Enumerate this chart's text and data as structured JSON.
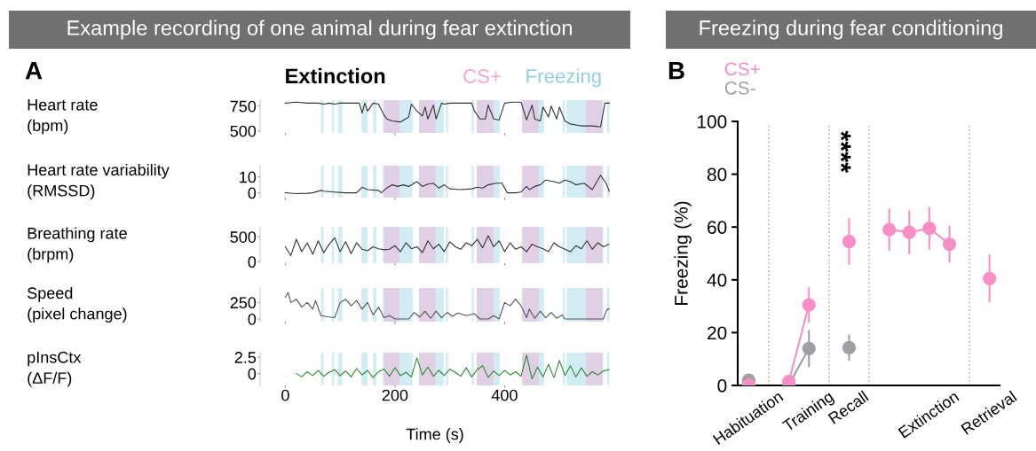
{
  "chart_data": [
    {
      "type": "line",
      "title": "Example recording of one animal during fear extinction",
      "subtitle": "Extinction",
      "annotations": [
        "A"
      ],
      "ylabel": "Heart rate\n(bpm)",
      "xlim": [
        -46,
        592
      ],
      "xticks": [
        0,
        200,
        400
      ],
      "ylim": [
        480,
        810
      ],
      "yticks": [
        500,
        750
      ],
      "tick_labels": "y",
      "legend": "top right",
      "series": [
        {
          "color": "#333333",
          "x": [
            0,
            20,
            40,
            60,
            70,
            80,
            90,
            100,
            120,
            135,
            140,
            145,
            150,
            160,
            170,
            180,
            185,
            195,
            210,
            225,
            230,
            240,
            250,
            255,
            260,
            270,
            275,
            285,
            290,
            300,
            320,
            340,
            345,
            355,
            365,
            370,
            380,
            390,
            400,
            415,
            430,
            435,
            440,
            450,
            455,
            465,
            470,
            480,
            485,
            495,
            500,
            510,
            520,
            530,
            540,
            560,
            575,
            583,
            591
          ],
          "values": [
            780,
            790,
            780,
            780,
            770,
            780,
            770,
            780,
            780,
            780,
            680,
            780,
            700,
            780,
            770,
            660,
            620,
            600,
            590,
            640,
            770,
            700,
            650,
            740,
            620,
            760,
            620,
            780,
            770,
            780,
            780,
            780,
            700,
            620,
            620,
            760,
            620,
            610,
            780,
            790,
            790,
            700,
            610,
            760,
            620,
            600,
            740,
            640,
            750,
            620,
            740,
            600,
            570,
            560,
            550,
            550,
            540,
            780,
            780
          ]
        }
      ],
      "bands": [
        {
          "axis": "x",
          "from": 65,
          "to": 70,
          "color": "#8ecfe0",
          "label": "Freezing"
        },
        {
          "axis": "x",
          "from": 85,
          "to": 89,
          "color": "#8ecfe0"
        },
        {
          "axis": "x",
          "from": 96,
          "to": 104,
          "color": "#8ecfe0"
        },
        {
          "axis": "x",
          "from": 139,
          "to": 150,
          "color": "#8ecfe0"
        },
        {
          "axis": "x",
          "from": 160,
          "to": 166,
          "color": "#8ecfe0"
        },
        {
          "axis": "x",
          "from": 178,
          "to": 232,
          "color": "#8ecfe0"
        },
        {
          "axis": "x",
          "from": 244,
          "to": 289,
          "color": "#8ecfe0"
        },
        {
          "axis": "x",
          "from": 293,
          "to": 297,
          "color": "#8ecfe0"
        },
        {
          "axis": "x",
          "from": 340,
          "to": 344,
          "color": "#8ecfe0"
        },
        {
          "axis": "x",
          "from": 349,
          "to": 391,
          "color": "#8ecfe0"
        },
        {
          "axis": "x",
          "from": 432,
          "to": 472,
          "color": "#8ecfe0"
        },
        {
          "axis": "x",
          "from": 506,
          "to": 510,
          "color": "#8ecfe0"
        },
        {
          "axis": "x",
          "from": 513,
          "to": 580,
          "color": "#8ecfe0"
        },
        {
          "axis": "x",
          "from": 587,
          "to": 591,
          "color": "#8ecfe0"
        },
        {
          "axis": "x",
          "from": 180,
          "to": 208,
          "color": "#f4a6d0",
          "label": "CS+"
        },
        {
          "axis": "x",
          "from": 244,
          "to": 274,
          "color": "#f4a6d0"
        },
        {
          "axis": "x",
          "from": 349,
          "to": 380,
          "color": "#f4a6d0"
        },
        {
          "axis": "x",
          "from": 432,
          "to": 462,
          "color": "#f4a6d0"
        },
        {
          "axis": "x",
          "from": 548,
          "to": 578,
          "color": "#f4a6d0"
        }
      ]
    },
    {
      "type": "line",
      "ylabel": "Heart rate variability\n(RMSSD)",
      "xlim": [
        -46,
        592
      ],
      "xticks": [
        0,
        200,
        400
      ],
      "ylim": [
        -3,
        17
      ],
      "yticks": [
        0,
        10
      ],
      "tick_labels": "y",
      "series": [
        {
          "color": "#333333",
          "x": [
            0,
            20,
            40,
            50,
            65,
            70,
            90,
            110,
            130,
            140,
            150,
            170,
            175,
            185,
            195,
            205,
            215,
            225,
            240,
            250,
            260,
            270,
            280,
            290,
            300,
            320,
            340,
            350,
            360,
            370,
            385,
            395,
            405,
            420,
            430,
            440,
            445,
            455,
            465,
            475,
            490,
            500,
            510,
            520,
            530,
            545,
            560,
            575,
            585,
            591
          ],
          "values": [
            0,
            -0.5,
            -0.3,
            0,
            1.5,
            1,
            0.5,
            0,
            0,
            3.5,
            2,
            1.5,
            0,
            3,
            5,
            4,
            5,
            4,
            7,
            4,
            5.5,
            6,
            3,
            5,
            2.5,
            2,
            2.5,
            3.5,
            3,
            5,
            6,
            6,
            0,
            0,
            0.5,
            4,
            2,
            4,
            5,
            8,
            7,
            6,
            8,
            7,
            5,
            6,
            2,
            11,
            6,
            1
          ]
        }
      ],
      "bands": [
        {
          "axis": "x",
          "from": 65,
          "to": 70,
          "color": "#8ecfe0"
        },
        {
          "axis": "x",
          "from": 85,
          "to": 89,
          "color": "#8ecfe0"
        },
        {
          "axis": "x",
          "from": 96,
          "to": 104,
          "color": "#8ecfe0"
        },
        {
          "axis": "x",
          "from": 139,
          "to": 150,
          "color": "#8ecfe0"
        },
        {
          "axis": "x",
          "from": 160,
          "to": 166,
          "color": "#8ecfe0"
        },
        {
          "axis": "x",
          "from": 178,
          "to": 232,
          "color": "#8ecfe0"
        },
        {
          "axis": "x",
          "from": 244,
          "to": 289,
          "color": "#8ecfe0"
        },
        {
          "axis": "x",
          "from": 293,
          "to": 297,
          "color": "#8ecfe0"
        },
        {
          "axis": "x",
          "from": 340,
          "to": 344,
          "color": "#8ecfe0"
        },
        {
          "axis": "x",
          "from": 349,
          "to": 391,
          "color": "#8ecfe0"
        },
        {
          "axis": "x",
          "from": 432,
          "to": 472,
          "color": "#8ecfe0"
        },
        {
          "axis": "x",
          "from": 506,
          "to": 510,
          "color": "#8ecfe0"
        },
        {
          "axis": "x",
          "from": 513,
          "to": 580,
          "color": "#8ecfe0"
        },
        {
          "axis": "x",
          "from": 587,
          "to": 591,
          "color": "#8ecfe0"
        },
        {
          "axis": "x",
          "from": 180,
          "to": 208,
          "color": "#f4a6d0"
        },
        {
          "axis": "x",
          "from": 244,
          "to": 274,
          "color": "#f4a6d0"
        },
        {
          "axis": "x",
          "from": 349,
          "to": 380,
          "color": "#f4a6d0"
        },
        {
          "axis": "x",
          "from": 432,
          "to": 462,
          "color": "#f4a6d0"
        },
        {
          "axis": "x",
          "from": 548,
          "to": 578,
          "color": "#f4a6d0"
        }
      ]
    },
    {
      "type": "line",
      "ylabel": "Breathing rate\n(brpm)",
      "xlim": [
        -46,
        592
      ],
      "xticks": [
        0,
        200,
        400
      ],
      "ylim": [
        -30,
        700
      ],
      "yticks": [
        0,
        500
      ],
      "tick_labels": "y",
      "series": [
        {
          "color": "#333333",
          "x": [
            0,
            10,
            20,
            30,
            40,
            50,
            60,
            70,
            80,
            90,
            100,
            110,
            120,
            130,
            140,
            150,
            160,
            170,
            180,
            190,
            200,
            210,
            220,
            230,
            240,
            250,
            260,
            270,
            280,
            290,
            300,
            310,
            320,
            330,
            340,
            350,
            360,
            370,
            380,
            390,
            400,
            410,
            420,
            430,
            440,
            450,
            460,
            470,
            480,
            490,
            500,
            510,
            520,
            530,
            540,
            550,
            560,
            570,
            580,
            590
          ],
          "values": [
            300,
            120,
            450,
            200,
            380,
            150,
            420,
            180,
            350,
            480,
            200,
            400,
            160,
            380,
            250,
            220,
            300,
            260,
            240,
            250,
            320,
            200,
            380,
            260,
            300,
            180,
            420,
            260,
            350,
            200,
            400,
            300,
            250,
            380,
            320,
            450,
            280,
            520,
            300,
            420,
            200,
            380,
            250,
            300,
            200,
            350,
            300,
            260,
            200,
            380,
            300,
            250,
            200,
            320,
            260,
            420,
            250,
            380,
            300,
            350
          ]
        }
      ],
      "bands": [
        {
          "axis": "x",
          "from": 65,
          "to": 70,
          "color": "#8ecfe0"
        },
        {
          "axis": "x",
          "from": 85,
          "to": 89,
          "color": "#8ecfe0"
        },
        {
          "axis": "x",
          "from": 96,
          "to": 104,
          "color": "#8ecfe0"
        },
        {
          "axis": "x",
          "from": 139,
          "to": 150,
          "color": "#8ecfe0"
        },
        {
          "axis": "x",
          "from": 160,
          "to": 166,
          "color": "#8ecfe0"
        },
        {
          "axis": "x",
          "from": 178,
          "to": 232,
          "color": "#8ecfe0"
        },
        {
          "axis": "x",
          "from": 244,
          "to": 289,
          "color": "#8ecfe0"
        },
        {
          "axis": "x",
          "from": 293,
          "to": 297,
          "color": "#8ecfe0"
        },
        {
          "axis": "x",
          "from": 340,
          "to": 344,
          "color": "#8ecfe0"
        },
        {
          "axis": "x",
          "from": 349,
          "to": 391,
          "color": "#8ecfe0"
        },
        {
          "axis": "x",
          "from": 432,
          "to": 472,
          "color": "#8ecfe0"
        },
        {
          "axis": "x",
          "from": 506,
          "to": 510,
          "color": "#8ecfe0"
        },
        {
          "axis": "x",
          "from": 513,
          "to": 580,
          "color": "#8ecfe0"
        },
        {
          "axis": "x",
          "from": 587,
          "to": 591,
          "color": "#8ecfe0"
        },
        {
          "axis": "x",
          "from": 180,
          "to": 208,
          "color": "#f4a6d0"
        },
        {
          "axis": "x",
          "from": 244,
          "to": 274,
          "color": "#f4a6d0"
        },
        {
          "axis": "x",
          "from": 349,
          "to": 380,
          "color": "#f4a6d0"
        },
        {
          "axis": "x",
          "from": 432,
          "to": 462,
          "color": "#f4a6d0"
        },
        {
          "axis": "x",
          "from": 548,
          "to": 578,
          "color": "#f4a6d0"
        }
      ]
    },
    {
      "type": "line",
      "ylabel": "Speed\n(pixel change)",
      "xlim": [
        -46,
        592
      ],
      "xticks": [
        0,
        200,
        400
      ],
      "ylim": [
        -40,
        470
      ],
      "yticks": [
        0,
        250
      ],
      "tick_labels": "y",
      "series": [
        {
          "color": "#555555",
          "x": [
            0,
            5,
            10,
            20,
            30,
            40,
            50,
            55,
            65,
            80,
            90,
            100,
            110,
            120,
            130,
            140,
            150,
            160,
            170,
            180,
            190,
            200,
            225,
            235,
            245,
            255,
            265,
            275,
            285,
            295,
            305,
            315,
            330,
            345,
            355,
            370,
            380,
            390,
            400,
            410,
            420,
            430,
            440,
            445,
            455,
            465,
            475,
            485,
            495,
            505,
            510,
            560,
            580,
            587,
            591
          ],
          "values": [
            330,
            400,
            250,
            300,
            180,
            250,
            150,
            280,
            50,
            30,
            20,
            250,
            300,
            200,
            280,
            150,
            250,
            60,
            180,
            20,
            50,
            0,
            0,
            100,
            30,
            120,
            10,
            120,
            20,
            100,
            40,
            90,
            50,
            80,
            0,
            0,
            50,
            0,
            250,
            200,
            300,
            200,
            20,
            150,
            10,
            120,
            20,
            100,
            10,
            60,
            0,
            0,
            0,
            150,
            150
          ]
        }
      ],
      "bands": [
        {
          "axis": "x",
          "from": 65,
          "to": 70,
          "color": "#8ecfe0"
        },
        {
          "axis": "x",
          "from": 85,
          "to": 89,
          "color": "#8ecfe0"
        },
        {
          "axis": "x",
          "from": 96,
          "to": 104,
          "color": "#8ecfe0"
        },
        {
          "axis": "x",
          "from": 139,
          "to": 150,
          "color": "#8ecfe0"
        },
        {
          "axis": "x",
          "from": 160,
          "to": 166,
          "color": "#8ecfe0"
        },
        {
          "axis": "x",
          "from": 178,
          "to": 232,
          "color": "#8ecfe0"
        },
        {
          "axis": "x",
          "from": 244,
          "to": 289,
          "color": "#8ecfe0"
        },
        {
          "axis": "x",
          "from": 293,
          "to": 297,
          "color": "#8ecfe0"
        },
        {
          "axis": "x",
          "from": 340,
          "to": 344,
          "color": "#8ecfe0"
        },
        {
          "axis": "x",
          "from": 349,
          "to": 391,
          "color": "#8ecfe0"
        },
        {
          "axis": "x",
          "from": 432,
          "to": 472,
          "color": "#8ecfe0"
        },
        {
          "axis": "x",
          "from": 506,
          "to": 510,
          "color": "#8ecfe0"
        },
        {
          "axis": "x",
          "from": 513,
          "to": 580,
          "color": "#8ecfe0"
        },
        {
          "axis": "x",
          "from": 587,
          "to": 591,
          "color": "#8ecfe0"
        },
        {
          "axis": "x",
          "from": 180,
          "to": 208,
          "color": "#f4a6d0"
        },
        {
          "axis": "x",
          "from": 244,
          "to": 274,
          "color": "#f4a6d0"
        },
        {
          "axis": "x",
          "from": 349,
          "to": 380,
          "color": "#f4a6d0"
        },
        {
          "axis": "x",
          "from": 432,
          "to": 462,
          "color": "#f4a6d0"
        },
        {
          "axis": "x",
          "from": 548,
          "to": 578,
          "color": "#f4a6d0"
        }
      ]
    },
    {
      "type": "line",
      "ylabel": "pInsCtx\n(ΔF/F)",
      "xlabel": "Time (s)",
      "xlim": [
        -46,
        592
      ],
      "xticks": [
        0,
        200,
        400
      ],
      "ylim": [
        -1.8,
        3.2
      ],
      "yticks": [
        0,
        2.5
      ],
      "series": [
        {
          "color": "#2e8b2e",
          "x": [
            20,
            30,
            40,
            50,
            60,
            70,
            80,
            90,
            100,
            110,
            120,
            130,
            140,
            150,
            160,
            170,
            180,
            190,
            200,
            210,
            220,
            230,
            240,
            250,
            260,
            270,
            280,
            290,
            300,
            310,
            320,
            330,
            340,
            350,
            360,
            370,
            380,
            390,
            400,
            410,
            420,
            430,
            440,
            450,
            460,
            470,
            480,
            490,
            500,
            510,
            520,
            530,
            540,
            550,
            560,
            570,
            580,
            590
          ],
          "values": [
            0,
            -0.5,
            0.3,
            -0.3,
            0.5,
            -0.4,
            0.2,
            0.6,
            -0.3,
            0.4,
            -0.5,
            0.8,
            -0.2,
            0.5,
            -0.6,
            0.3,
            0.7,
            -0.4,
            0.9,
            -0.3,
            0.2,
            -0.5,
            2.4,
            -0.2,
            1.0,
            -0.4,
            0.5,
            -0.3,
            0.7,
            0.2,
            -0.4,
            0.9,
            -0.5,
            0.6,
            1.2,
            -0.6,
            0.4,
            -0.3,
            0.5,
            -0.2,
            0.3,
            -0.4,
            2.8,
            -0.8,
            1.0,
            -0.5,
            1.4,
            -0.6,
            2.0,
            -0.3,
            1.2,
            -0.5,
            0.9,
            -0.4,
            0.3,
            -0.2,
            0.4,
            0.6
          ]
        }
      ],
      "bands": [
        {
          "axis": "x",
          "from": 65,
          "to": 70,
          "color": "#8ecfe0"
        },
        {
          "axis": "x",
          "from": 85,
          "to": 89,
          "color": "#8ecfe0"
        },
        {
          "axis": "x",
          "from": 96,
          "to": 104,
          "color": "#8ecfe0"
        },
        {
          "axis": "x",
          "from": 139,
          "to": 150,
          "color": "#8ecfe0"
        },
        {
          "axis": "x",
          "from": 160,
          "to": 166,
          "color": "#8ecfe0"
        },
        {
          "axis": "x",
          "from": 178,
          "to": 232,
          "color": "#8ecfe0"
        },
        {
          "axis": "x",
          "from": 244,
          "to": 289,
          "color": "#8ecfe0"
        },
        {
          "axis": "x",
          "from": 293,
          "to": 297,
          "color": "#8ecfe0"
        },
        {
          "axis": "x",
          "from": 340,
          "to": 344,
          "color": "#8ecfe0"
        },
        {
          "axis": "x",
          "from": 349,
          "to": 391,
          "color": "#8ecfe0"
        },
        {
          "axis": "x",
          "from": 432,
          "to": 472,
          "color": "#8ecfe0"
        },
        {
          "axis": "x",
          "from": 506,
          "to": 510,
          "color": "#8ecfe0"
        },
        {
          "axis": "x",
          "from": 513,
          "to": 580,
          "color": "#8ecfe0"
        },
        {
          "axis": "x",
          "from": 587,
          "to": 591,
          "color": "#8ecfe0"
        },
        {
          "axis": "x",
          "from": 180,
          "to": 208,
          "color": "#f4a6d0"
        },
        {
          "axis": "x",
          "from": 244,
          "to": 274,
          "color": "#f4a6d0"
        },
        {
          "axis": "x",
          "from": 349,
          "to": 380,
          "color": "#f4a6d0"
        },
        {
          "axis": "x",
          "from": 432,
          "to": 462,
          "color": "#f4a6d0"
        },
        {
          "axis": "x",
          "from": 548,
          "to": 578,
          "color": "#f4a6d0"
        }
      ]
    },
    {
      "type": "line",
      "title": "Freezing during fear conditioning",
      "annotations": [
        "B",
        "****"
      ],
      "ylabel": "Freezing (%)",
      "categories": [
        "Habituation",
        null,
        null,
        "Training",
        null,
        "Recall",
        null,
        null,
        null,
        "Extinction",
        null,
        null,
        "Retrieval"
      ],
      "ylim": [
        0,
        100
      ],
      "yticks": [
        0,
        20,
        40,
        60,
        80,
        100
      ],
      "marker": "circle",
      "legend": "top left",
      "grid": "x",
      "series": [
        {
          "name": "CS-",
          "color": "#a0a0a4",
          "values": [
            2,
            null,
            0.3,
            14,
            null,
            14.3,
            null,
            null,
            null,
            null,
            null,
            null,
            null
          ],
          "errors": [
            null,
            null,
            null,
            7,
            null,
            5,
            null,
            null,
            null,
            null,
            null,
            null,
            null
          ]
        },
        {
          "name": "CS+",
          "color": "#f78fc6",
          "values": [
            0,
            null,
            1.5,
            30.5,
            null,
            54.5,
            null,
            59,
            58,
            59.5,
            53.5,
            null,
            40.5
          ],
          "errors": [
            null,
            null,
            null,
            6.7,
            null,
            8.8,
            null,
            8,
            8.3,
            8,
            7,
            null,
            9
          ]
        }
      ]
    }
  ]
}
